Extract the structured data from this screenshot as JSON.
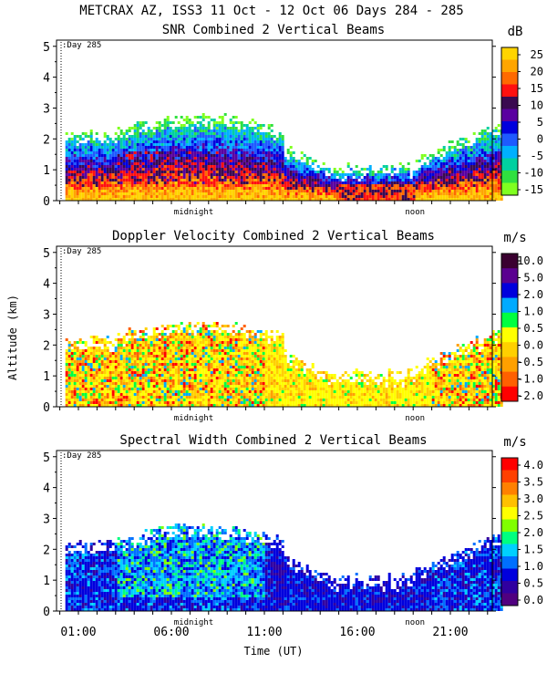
{
  "page_title": "METCRAX AZ, ISS3  11 Oct - 12 Oct 06 Days 284 - 285",
  "shared": {
    "y_label": "Altitude (km)",
    "x_label": "Time (UT)",
    "y_ticks": [
      "0",
      "1",
      "2",
      "3",
      "4",
      "5"
    ],
    "x_tick_labels": [
      "01:00",
      "06:00",
      "11:00",
      "16:00",
      "21:00"
    ],
    "midnight_label": "midnight",
    "noon_label": "noon",
    "day_marker": ":Day 285"
  },
  "chart_data": [
    {
      "type": "heatmap",
      "title": "SNR Combined 2 Vertical Beams",
      "unit": "dB",
      "ylim": [
        0,
        5.2
      ],
      "colorbar_labels": [
        "25",
        "20",
        "15",
        "10",
        "5",
        "0",
        "-5",
        "-10",
        "-15"
      ],
      "colors": [
        "#ffd400",
        "#ffa500",
        "#ff6a00",
        "#ff1010",
        "#3a0a50",
        "#5a00a0",
        "#0000dd",
        "#1e5aff",
        "#00b0ff",
        "#00d0a0",
        "#30e040",
        "#80ff20"
      ]
    },
    {
      "type": "heatmap",
      "title": "Doppler Velocity Combined 2 Vertical Beams",
      "unit": "m/s",
      "ylim": [
        0,
        5.2
      ],
      "colorbar_labels": [
        "10.0",
        "5.0",
        "2.0",
        "1.0",
        "0.5",
        "0.0",
        "-0.5",
        "-1.0",
        "-2.0"
      ],
      "colors": [
        "#3a0030",
        "#5a0090",
        "#0000dd",
        "#00aaff",
        "#00ff40",
        "#ffff00",
        "#ffd000",
        "#ffa000",
        "#ff6000",
        "#ff0000"
      ]
    },
    {
      "type": "heatmap",
      "title": "Spectral Width Combined 2 Vertical Beams",
      "unit": "m/s",
      "ylim": [
        0,
        5.2
      ],
      "colorbar_labels": [
        "4.0",
        "3.5",
        "3.0",
        "2.5",
        "2.0",
        "1.5",
        "1.0",
        "0.5",
        "0.0"
      ],
      "colors": [
        "#ff0000",
        "#ff4000",
        "#ff8000",
        "#ffc000",
        "#ffff00",
        "#80ff00",
        "#00ff80",
        "#00d0ff",
        "#0070ff",
        "#0000dd",
        "#3000a0",
        "#500080"
      ]
    }
  ]
}
